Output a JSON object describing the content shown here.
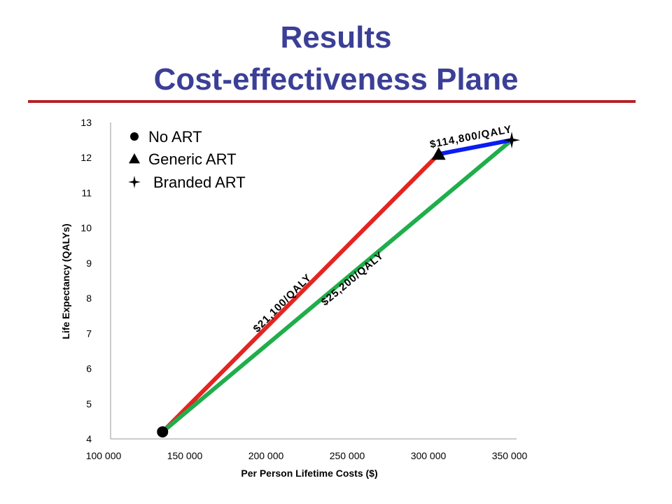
{
  "slide": {
    "title_line1": "Results",
    "title_line2": "Cost-effectiveness Plane"
  },
  "colors": {
    "title": "#3b3f96",
    "rule": "#b52126",
    "red": "#e52421",
    "green": "#1fae4b",
    "blue": "#0a1df0"
  },
  "chart_data": {
    "type": "scatter",
    "xlabel": "Per Person Lifetime Costs ($)",
    "ylabel": "Life Expectancy (QALYs)",
    "xlim": [
      100000,
      350000
    ],
    "ylim": [
      4,
      13
    ],
    "xticks": [
      "100 000",
      "150 000",
      "200 000",
      "250 000",
      "300 000",
      "350 000"
    ],
    "yticks": [
      "4",
      "5",
      "6",
      "7",
      "8",
      "9",
      "10",
      "11",
      "12",
      "13"
    ],
    "points": [
      {
        "name": "No ART",
        "marker": "circle",
        "x": 132000,
        "y": 4.2
      },
      {
        "name": "Generic ART",
        "marker": "triangle",
        "x": 302000,
        "y": 12.1
      },
      {
        "name": "Branded ART",
        "marker": "star4",
        "x": 347000,
        "y": 12.5
      }
    ],
    "lines": [
      {
        "from": 0,
        "to": 1,
        "color": "#e52421",
        "label": "$21,100/QALY"
      },
      {
        "from": 0,
        "to": 2,
        "color": "#1fae4b",
        "label": "$25,200/QALY"
      },
      {
        "from": 1,
        "to": 2,
        "color": "#0a1df0",
        "label": "$114,800/QALY"
      }
    ],
    "legend": {
      "position": "top-left",
      "entries": [
        "No ART",
        "Generic ART",
        "Branded ART"
      ]
    },
    "grid": false
  }
}
